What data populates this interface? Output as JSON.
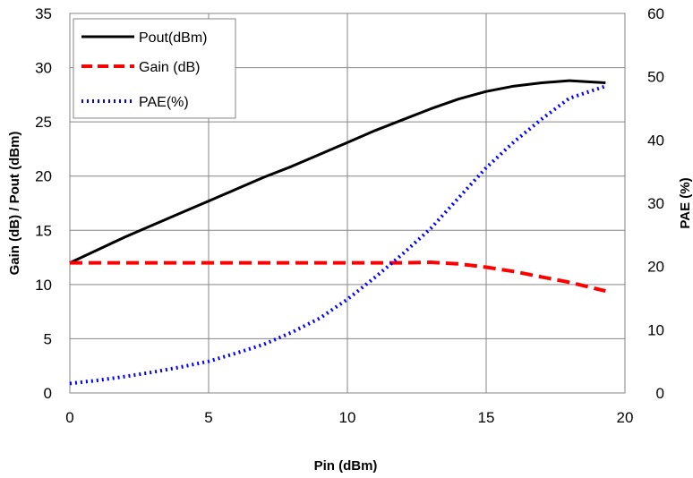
{
  "chart_data": {
    "type": "line",
    "title": "",
    "xlabel": "Pin (dBm)",
    "ylabel": "Gain (dB) / Pout (dBm)",
    "y2label": "PAE (%)",
    "xlim": [
      0,
      20
    ],
    "ylim": [
      0,
      35
    ],
    "y2lim": [
      0,
      60
    ],
    "x_ticks": [
      "0",
      "5",
      "10",
      "15",
      "20"
    ],
    "y_ticks": [
      "0",
      "5",
      "10",
      "15",
      "20",
      "25",
      "30",
      "35"
    ],
    "y2_ticks": [
      "0",
      "10",
      "20",
      "30",
      "40",
      "50",
      "60"
    ],
    "grid": true,
    "legend_position": "top-left",
    "series": [
      {
        "name": "Pout(dBm)",
        "axis": "left",
        "color": "#000000",
        "style": "solid",
        "x": [
          0,
          1,
          2,
          3,
          4,
          5,
          6,
          7,
          8,
          9,
          10,
          11,
          12,
          13,
          14,
          15,
          16,
          17,
          18,
          19.3
        ],
        "y": [
          12.0,
          13.2,
          14.4,
          15.5,
          16.6,
          17.7,
          18.8,
          19.9,
          20.9,
          22.0,
          23.1,
          24.2,
          25.2,
          26.2,
          27.1,
          27.8,
          28.3,
          28.6,
          28.8,
          28.6
        ]
      },
      {
        "name": "Gain (dB)",
        "axis": "left",
        "color": "#ff0000",
        "style": "dashed",
        "x": [
          0,
          2,
          4,
          6,
          8,
          10,
          11,
          12,
          13,
          14,
          15,
          16,
          17,
          18,
          19.3
        ],
        "y": [
          12.0,
          12.0,
          12.0,
          12.0,
          12.0,
          12.0,
          12.0,
          12.0,
          12.05,
          11.9,
          11.6,
          11.2,
          10.7,
          10.2,
          9.4
        ]
      },
      {
        "name": "PAE(%)",
        "axis": "right",
        "color": "#0000ff",
        "style": "dotted",
        "x": [
          0,
          1,
          2,
          3,
          4,
          5,
          6,
          7,
          8,
          9,
          10,
          11,
          12,
          13,
          14,
          15,
          16,
          17,
          18,
          19.3
        ],
        "y": [
          1.5,
          2.0,
          2.6,
          3.3,
          4.1,
          5.0,
          6.3,
          7.7,
          9.6,
          11.8,
          14.8,
          18.3,
          22.0,
          26.0,
          30.8,
          35.6,
          39.7,
          43.3,
          46.6,
          48.5
        ]
      }
    ]
  }
}
